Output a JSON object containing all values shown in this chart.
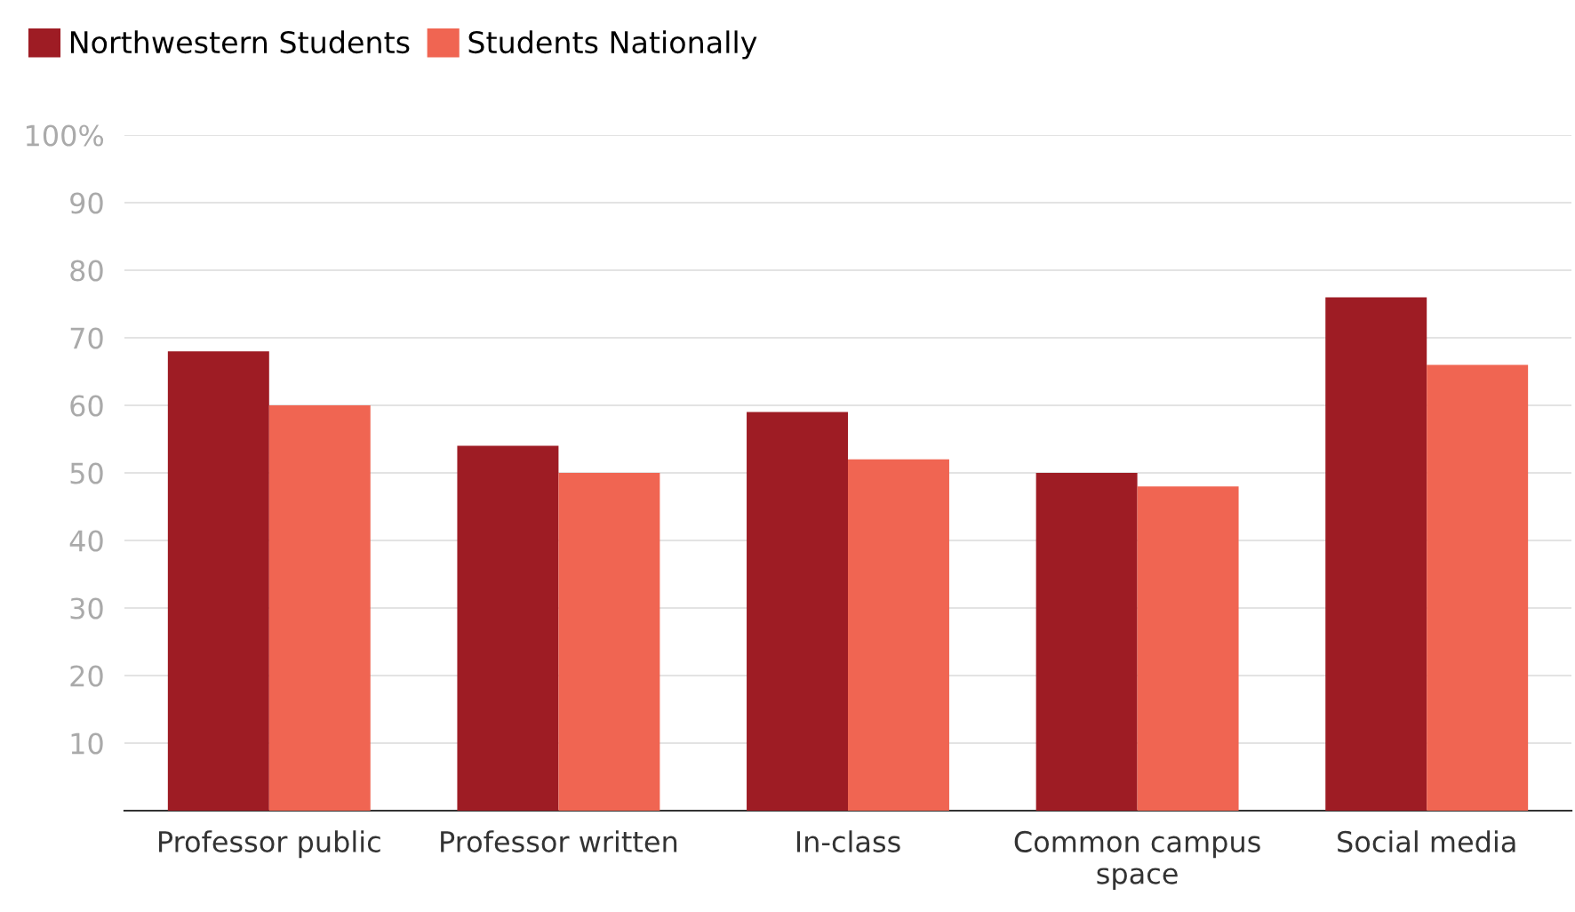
{
  "chart_data": {
    "type": "bar",
    "categories": [
      "Professor public",
      "Professor written",
      "In-class",
      "Common campus space",
      "Social media"
    ],
    "series": [
      {
        "name": "Northwestern Students",
        "color": "#9e1c24",
        "values": [
          68,
          54,
          59,
          50,
          76
        ]
      },
      {
        "name": "Students Nationally",
        "color": "#f06552",
        "values": [
          60,
          50,
          52,
          48,
          66
        ]
      }
    ],
    "ylim": [
      0,
      100
    ],
    "yticks": [
      10,
      20,
      30,
      40,
      50,
      60,
      70,
      80,
      90,
      {
        "value": 100,
        "label": "100%"
      }
    ],
    "grid": "y",
    "legend": "top left"
  }
}
